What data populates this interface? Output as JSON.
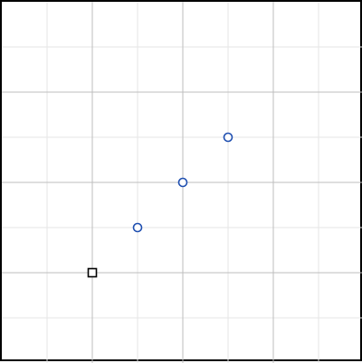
{
  "canvas": {
    "background": "#ffffff",
    "frame_color": "#000000"
  },
  "grid": {
    "minor_color": "#e6e6e6",
    "major_color": "#bdbdbd",
    "visible": true
  },
  "points": [
    {
      "id": "point-1",
      "col": 3,
      "row": 5,
      "marker": "circle",
      "color": "#1f4fb0"
    },
    {
      "id": "point-2",
      "col": 4,
      "row": 4,
      "marker": "circle",
      "color": "#1f4fb0"
    },
    {
      "id": "point-3",
      "col": 5,
      "row": 3,
      "marker": "circle",
      "color": "#1f4fb0"
    }
  ],
  "cursor": {
    "col": 2,
    "row": 6,
    "marker": "square",
    "color": "#000000",
    "icon": "square-cursor-icon"
  }
}
